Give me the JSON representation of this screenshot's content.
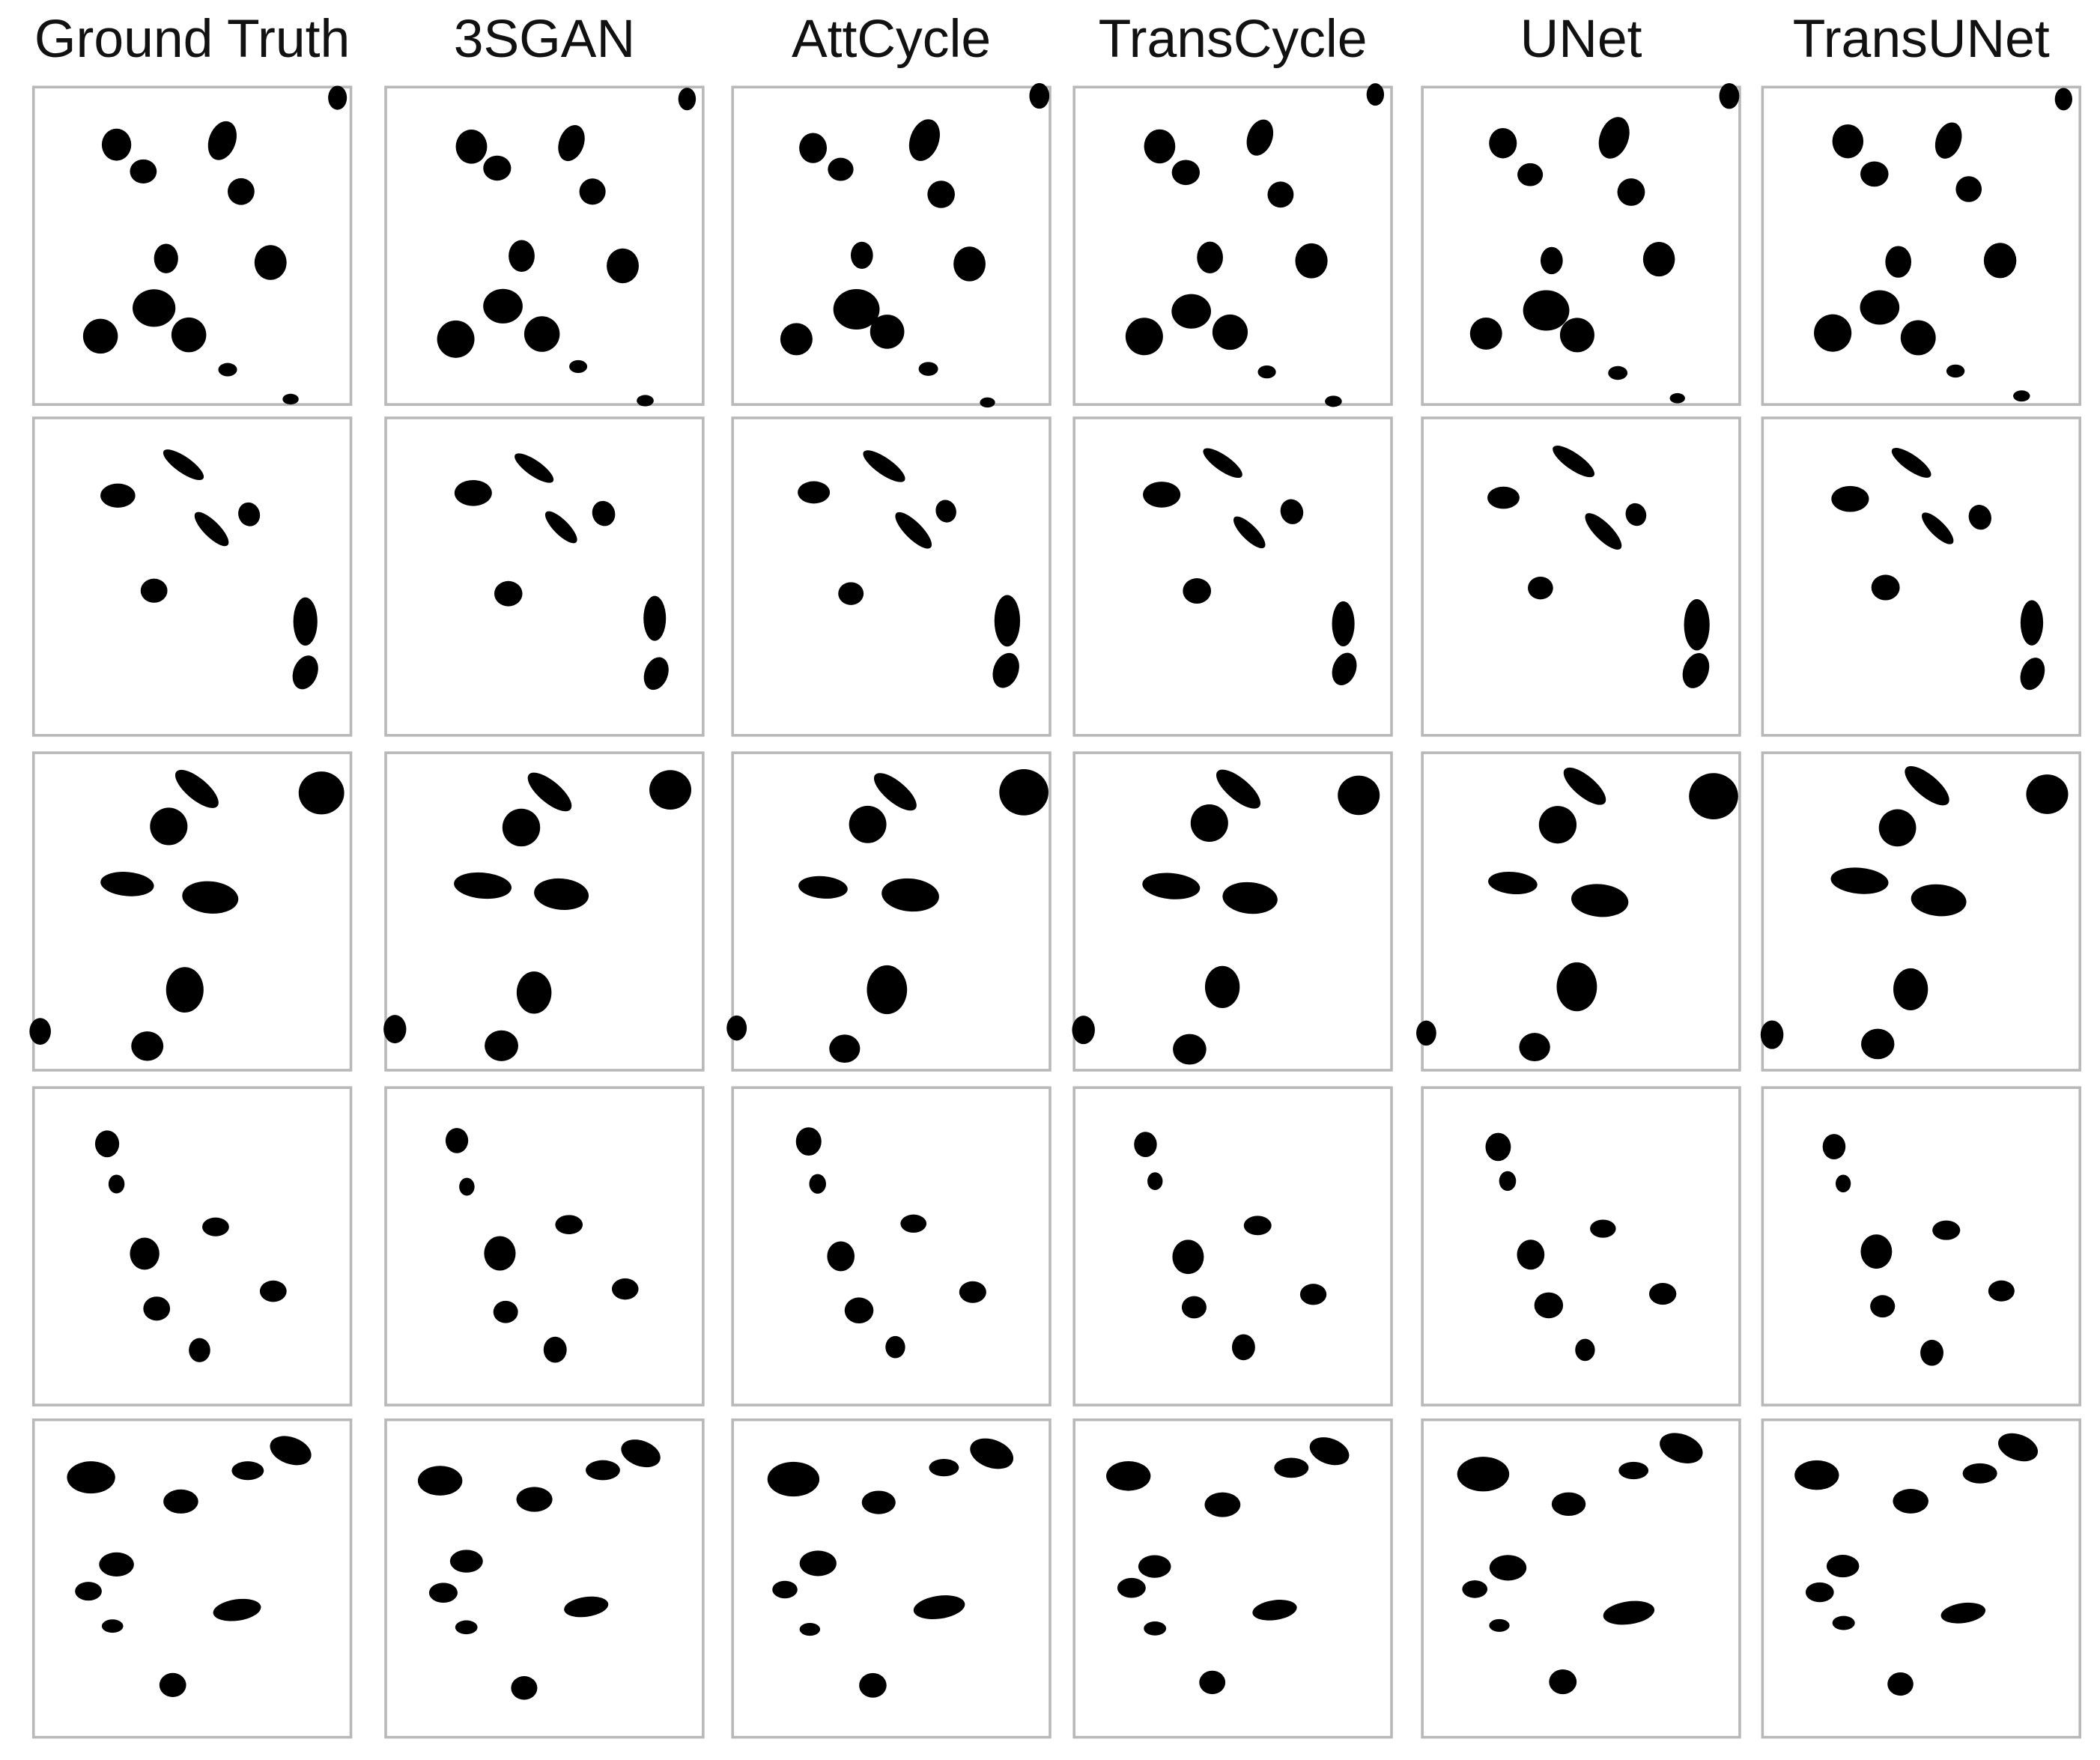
{
  "headers": [
    "Ground Truth",
    "3SGAN",
    "AttCycle",
    "TransCycle",
    "UNet",
    "TransUNet"
  ]
}
